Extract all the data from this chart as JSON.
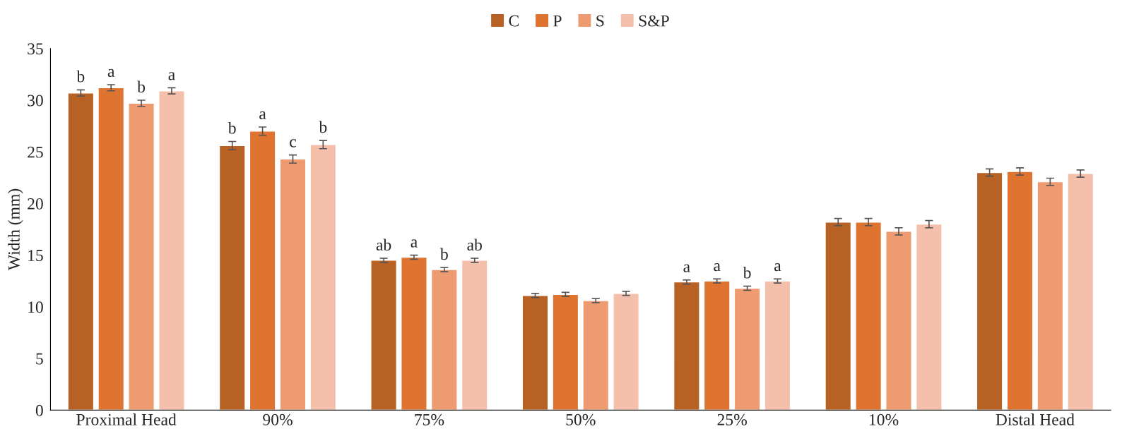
{
  "chart_data": {
    "type": "bar",
    "ylabel": "Width (mm)",
    "categories": [
      "Proximal Head",
      "90%",
      "75%",
      "50%",
      "25%",
      "10%",
      "Distal Head"
    ],
    "series": [
      {
        "name": "C",
        "color": "#b86125",
        "values": [
          30.7,
          25.6,
          14.5,
          11.1,
          12.4,
          18.2,
          23.0
        ],
        "errors": [
          0.3,
          0.4,
          0.2,
          0.2,
          0.2,
          0.35,
          0.35
        ],
        "value_labels": [
          "b",
          "b",
          "ab",
          null,
          "a",
          null,
          null
        ]
      },
      {
        "name": "P",
        "color": "#de7430",
        "values": [
          31.2,
          27.0,
          14.8,
          11.2,
          12.5,
          18.2,
          23.1
        ],
        "errors": [
          0.3,
          0.4,
          0.2,
          0.2,
          0.2,
          0.35,
          0.35
        ],
        "value_labels": [
          "a",
          "a",
          "a",
          null,
          "a",
          null,
          null
        ]
      },
      {
        "name": "S",
        "color": "#ef9b72",
        "values": [
          29.7,
          24.3,
          13.6,
          10.6,
          11.8,
          17.3,
          22.1
        ],
        "errors": [
          0.3,
          0.4,
          0.2,
          0.2,
          0.2,
          0.35,
          0.35
        ],
        "value_labels": [
          "b",
          "c",
          "b",
          null,
          "b",
          null,
          null
        ]
      },
      {
        "name": "S&P",
        "color": "#f5c0ab",
        "values": [
          30.9,
          25.7,
          14.5,
          11.3,
          12.5,
          18.0,
          22.9
        ],
        "errors": [
          0.3,
          0.4,
          0.2,
          0.2,
          0.2,
          0.35,
          0.35
        ],
        "value_labels": [
          "a",
          "b",
          "ab",
          null,
          "a",
          null,
          null
        ]
      }
    ],
    "ylim": [
      0,
      35
    ],
    "yticks": [
      0,
      5,
      10,
      15,
      20,
      25,
      30,
      35
    ],
    "grid": false,
    "legend": "top"
  }
}
